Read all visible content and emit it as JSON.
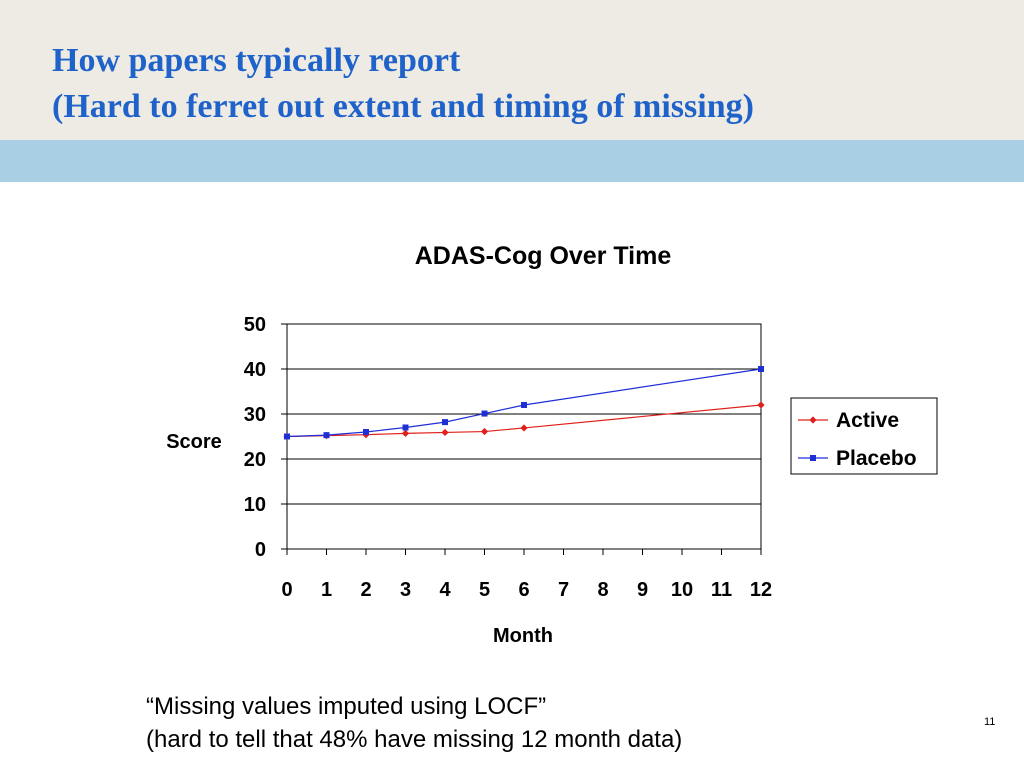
{
  "slide": {
    "title_line1": "How papers typically report",
    "title_line2": "(Hard to ferret out extent and timing of missing)",
    "caption_line1": "“Missing values imputed using LOCF”",
    "caption_line2": "(hard to tell that 48% have missing 12 month data)",
    "page_number": "11"
  },
  "colors": {
    "title": "#1f62c9",
    "title_band": "#eeebe4",
    "accent_band": "#a9cfe4",
    "active": "#e0201b",
    "placebo": "#1f2fd6"
  },
  "chart_data": {
    "type": "line",
    "title": "ADAS-Cog Over Time",
    "xlabel": "Month",
    "ylabel": "Score",
    "x": [
      0,
      1,
      2,
      3,
      4,
      5,
      6,
      7,
      8,
      9,
      10,
      11,
      12
    ],
    "ylim": [
      0,
      50
    ],
    "yticks": [
      0,
      10,
      20,
      30,
      40,
      50
    ],
    "grid": true,
    "legend_position": "right",
    "series": [
      {
        "name": "Active",
        "marker": "diamond",
        "color": "#e0201b",
        "x": [
          0,
          1,
          2,
          3,
          4,
          5,
          6,
          12
        ],
        "values": [
          25,
          25.2,
          25.4,
          25.7,
          25.9,
          26.1,
          26.9,
          32
        ]
      },
      {
        "name": "Placebo",
        "marker": "square",
        "color": "#1f2fd6",
        "x": [
          0,
          1,
          2,
          3,
          4,
          5,
          6,
          12
        ],
        "values": [
          25,
          25.3,
          26,
          27,
          28.2,
          30.1,
          32,
          40
        ]
      }
    ]
  }
}
